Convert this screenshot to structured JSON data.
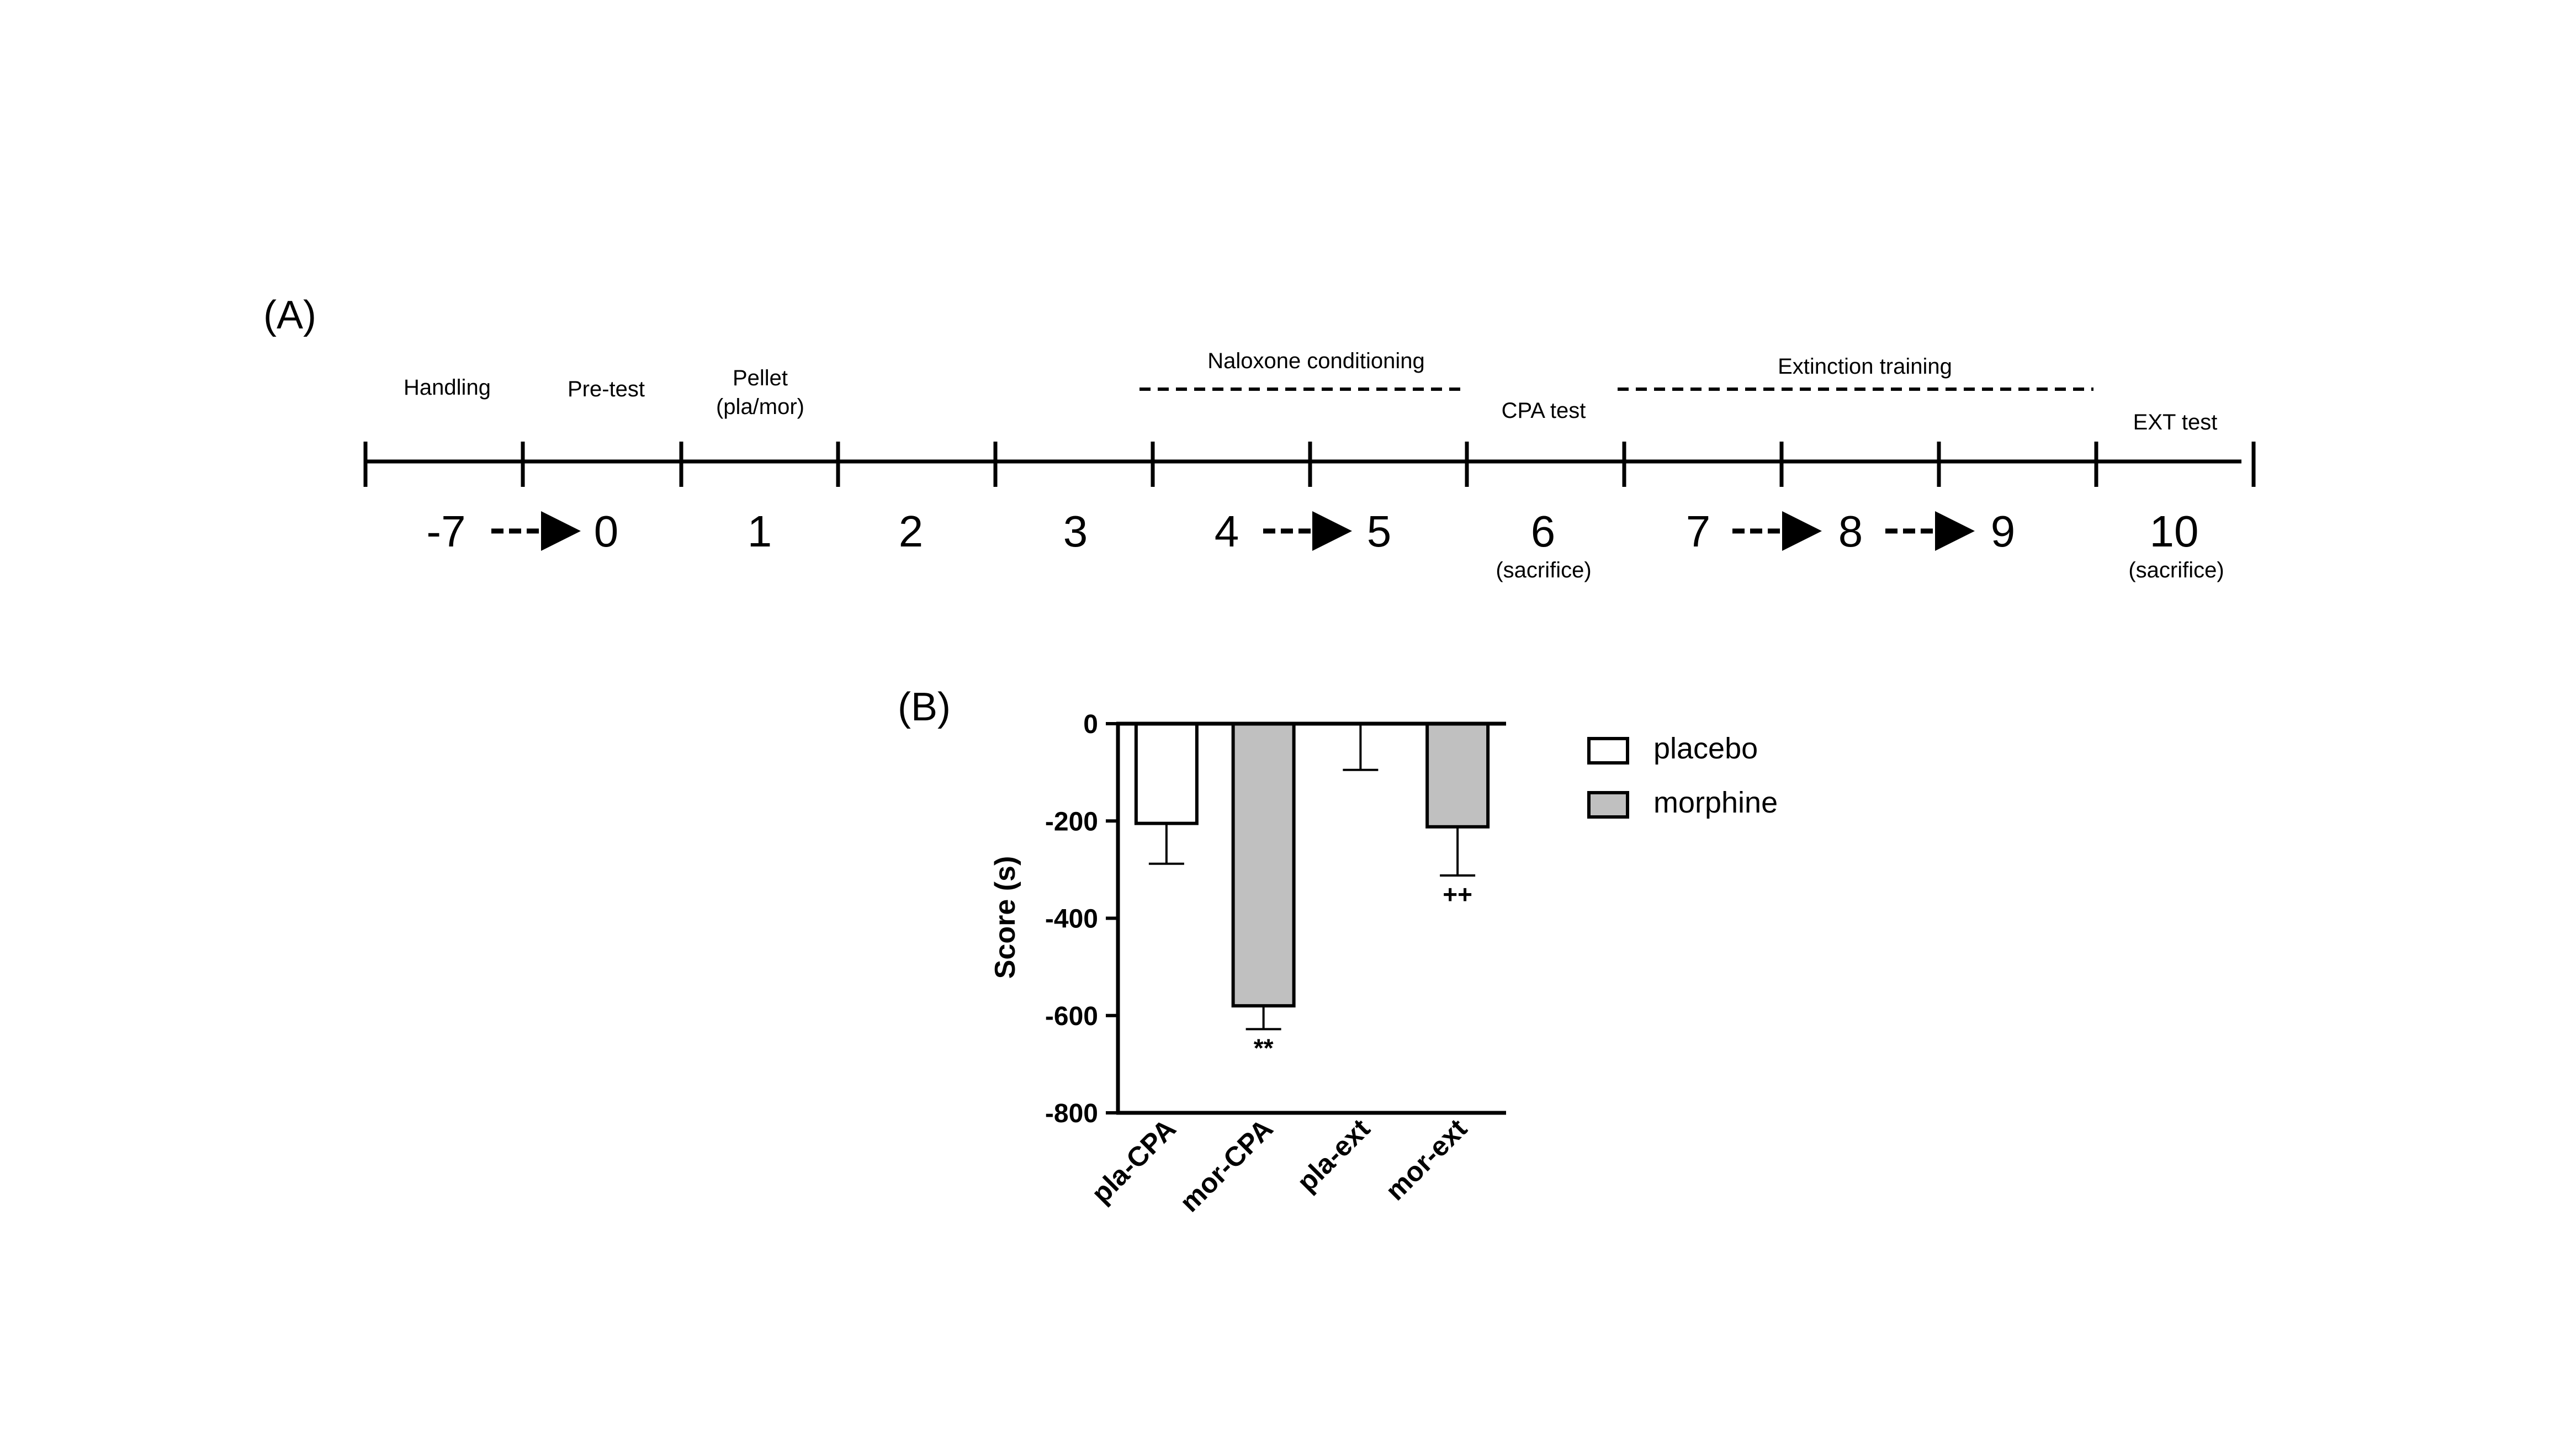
{
  "panel_a": {
    "label": "(A)",
    "days": [
      {
        "label": "-7",
        "sub": ""
      },
      {
        "label": "0",
        "sub": ""
      },
      {
        "label": "1",
        "sub": ""
      },
      {
        "label": "2",
        "sub": ""
      },
      {
        "label": "3",
        "sub": ""
      },
      {
        "label": "4",
        "sub": ""
      },
      {
        "label": "5",
        "sub": ""
      },
      {
        "label": "6",
        "sub": "(sacrifice)"
      },
      {
        "label": "7",
        "sub": ""
      },
      {
        "label": "8",
        "sub": ""
      },
      {
        "label": "9",
        "sub": ""
      },
      {
        "label": "10",
        "sub": "(sacrifice)"
      }
    ],
    "phases": [
      {
        "text": "Handling"
      },
      {
        "text": "Pre-test"
      },
      {
        "text": "Pellet"
      },
      {
        "text": "(pla/mor)"
      },
      {
        "text": "Naloxone conditioning"
      },
      {
        "text": "CPA test"
      },
      {
        "text": "Extinction training"
      },
      {
        "text": "EXT test"
      }
    ]
  },
  "panel_b": {
    "label": "(B)"
  },
  "chart_data": {
    "type": "bar",
    "ylabel": "Score (s)",
    "xlabel": "",
    "ylim": [
      -800,
      0
    ],
    "yticks": [
      "0",
      "-200",
      "-400",
      "-600",
      "-800"
    ],
    "categories": [
      "pla-CPA",
      "mor-CPA",
      "pla-ext",
      "mor-ext"
    ],
    "values": [
      -205,
      -580,
      0,
      -212
    ],
    "errors": [
      83,
      48,
      95,
      100
    ],
    "groups": [
      "placebo",
      "morphine",
      "placebo",
      "morphine"
    ],
    "annotations": [
      "",
      "**",
      "",
      "++"
    ],
    "legend": [
      {
        "name": "placebo",
        "color": "#ffffff"
      },
      {
        "name": "morphine",
        "color": "#c0c0c0"
      }
    ],
    "legend_position": "right",
    "grid": false
  }
}
